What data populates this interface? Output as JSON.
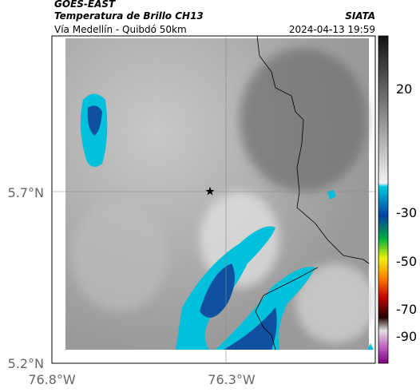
{
  "header": {
    "satellite": "GOES-EAST",
    "product": "Temperatura de Brillo CH13",
    "source": "SIATA",
    "route": "Vía Medellín - Quibdó 50km",
    "timestamp": "2024-04-13 19:59"
  },
  "map": {
    "lat_labels": [
      "5.7°N",
      "5.2°N"
    ],
    "lon_labels": [
      "76.8°W",
      "76.3°W"
    ]
  },
  "colorbar": {
    "labels": [
      "20",
      "-30",
      "-50",
      "-70",
      "-90"
    ]
  }
}
